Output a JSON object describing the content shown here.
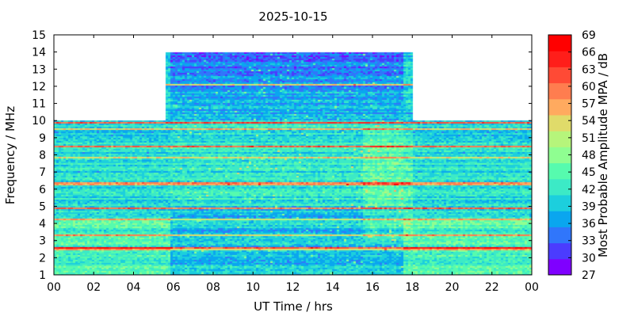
{
  "chart_data": {
    "type": "heatmap",
    "title": "2025-10-15",
    "xlabel": "UT Time / hrs",
    "ylabel": "Frequency / MHz",
    "xlim": [
      0,
      24
    ],
    "ylim": [
      1,
      15
    ],
    "x_ticks": [
      "00",
      "02",
      "04",
      "06",
      "08",
      "10",
      "12",
      "14",
      "16",
      "18",
      "20",
      "22",
      "00"
    ],
    "y_ticks": [
      "1",
      "2",
      "3",
      "4",
      "5",
      "6",
      "7",
      "8",
      "9",
      "10",
      "11",
      "12",
      "13",
      "14",
      "15"
    ],
    "colorbar": {
      "label": "Most Probable Amplitude MPA / dB",
      "ticks": [
        "27",
        "30",
        "33",
        "36",
        "39",
        "42",
        "45",
        "48",
        "51",
        "54",
        "57",
        "60",
        "63",
        "66",
        "69"
      ],
      "range": [
        27,
        69
      ],
      "colors": [
        "#7f00ff",
        "#4b3cfe",
        "#3076fb",
        "#0aa6ef",
        "#1ccfdd",
        "#3ceac6",
        "#56fbae",
        "#8ffe91",
        "#b6f57b",
        "#e0db6a",
        "#ffaa5f",
        "#ff7d4f",
        "#ff4a35",
        "#ff1e1a",
        "#ff0000"
      ]
    },
    "coverage": [
      {
        "t_start": 0,
        "t_end": 5.5,
        "f_max": 10
      },
      {
        "t_start": 5.5,
        "t_end": 18,
        "f_max": 14
      },
      {
        "t_start": 18,
        "t_end": 24,
        "f_max": 10
      }
    ],
    "interference_lines_mhz": [
      2.6,
      2.5,
      3.3,
      4.2,
      4.9,
      6.3,
      6.4,
      7.8,
      8.5,
      9.5,
      9.9,
      12.1
    ]
  }
}
